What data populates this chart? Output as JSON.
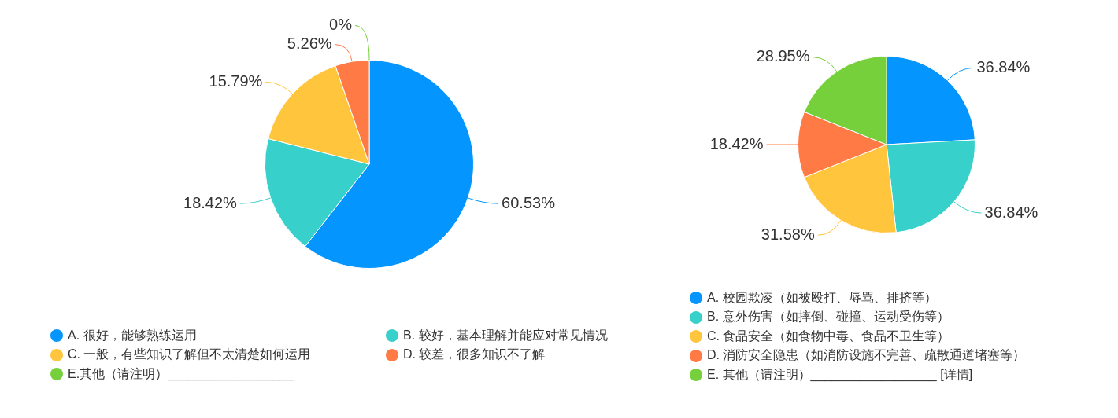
{
  "chart_data": [
    {
      "type": "pie",
      "categories": [
        "A. 很好，能够熟练运用",
        "B. 较好，基本理解并能应对常见情况",
        "C. 一般，有些知识了解但不太清楚如何运用",
        "D. 较差，很多知识不了解",
        "E.其他（请注明）__________________"
      ],
      "values": [
        60.53,
        18.42,
        15.79,
        5.26,
        0
      ],
      "colors": [
        "#0595ff",
        "#38d0ca",
        "#ffc53d",
        "#ff7a45",
        "#75d03c"
      ],
      "value_labels": [
        "60.53%",
        "18.42%",
        "15.79%",
        "5.26%",
        "0%"
      ],
      "legend": "bottom"
    },
    {
      "type": "pie",
      "categories": [
        "A. 校园欺凌（如被殴打、辱骂、排挤等）",
        "B. 意外伤害（如摔倒、碰撞、运动受伤等）",
        "C. 食品安全（如食物中毒、食品不卫生等）",
        "D. 消防安全隐患（如消防设施不完善、疏散通道堵塞等）",
        "E. 其他（请注明）__________________ [详情]"
      ],
      "values": [
        36.84,
        36.84,
        31.58,
        18.42,
        28.95
      ],
      "colors": [
        "#0595ff",
        "#38d0ca",
        "#ffc53d",
        "#ff7a45",
        "#75d03c"
      ],
      "value_labels": [
        "36.84%",
        "36.84%",
        "31.58%",
        "18.42%",
        "28.95%"
      ],
      "legend": "bottom"
    }
  ]
}
